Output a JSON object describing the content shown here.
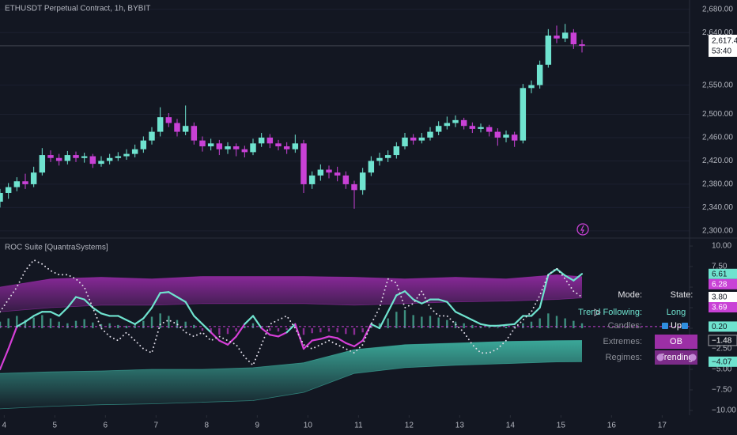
{
  "chart_data": [
    {
      "type": "candlestick",
      "title": "ETHUSDT Perpetual Contract, 1h, BYBIT",
      "x": [
        -2,
        2,
        6,
        10,
        14,
        18,
        22,
        26,
        30,
        34,
        38,
        42,
        46,
        50,
        54,
        58,
        62,
        66,
        70,
        74,
        78,
        82,
        86,
        90,
        94,
        98,
        102,
        106,
        110,
        114,
        118,
        122,
        126,
        130,
        134,
        138,
        142,
        146,
        150,
        154,
        158,
        162,
        166,
        170,
        174,
        178,
        182,
        186,
        190,
        194,
        198,
        202,
        206,
        210,
        214,
        218,
        222,
        226,
        230,
        234,
        238,
        242,
        246,
        250,
        254,
        258,
        262,
        266,
        270,
        274
      ],
      "ohlc": [
        [
          2350,
          2372,
          2340,
          2365
        ],
        [
          2365,
          2382,
          2355,
          2375
        ],
        [
          2375,
          2392,
          2368,
          2385
        ],
        [
          2385,
          2398,
          2372,
          2380
        ],
        [
          2380,
          2410,
          2375,
          2400
        ],
        [
          2400,
          2442,
          2395,
          2430
        ],
        [
          2430,
          2438,
          2418,
          2425
        ],
        [
          2425,
          2432,
          2412,
          2420
        ],
        [
          2420,
          2437,
          2414,
          2430
        ],
        [
          2430,
          2436,
          2418,
          2425
        ],
        [
          2425,
          2434,
          2417,
          2428
        ],
        [
          2428,
          2432,
          2408,
          2415
        ],
        [
          2415,
          2428,
          2410,
          2420
        ],
        [
          2420,
          2432,
          2414,
          2425
        ],
        [
          2425,
          2435,
          2420,
          2428
        ],
        [
          2428,
          2440,
          2422,
          2432
        ],
        [
          2432,
          2448,
          2426,
          2440
        ],
        [
          2440,
          2462,
          2434,
          2455
        ],
        [
          2455,
          2478,
          2448,
          2470
        ],
        [
          2470,
          2512,
          2462,
          2495
        ],
        [
          2495,
          2502,
          2478,
          2485
        ],
        [
          2485,
          2492,
          2462,
          2470
        ],
        [
          2470,
          2515,
          2464,
          2480
        ],
        [
          2480,
          2486,
          2448,
          2455
        ],
        [
          2455,
          2462,
          2436,
          2445
        ],
        [
          2445,
          2458,
          2438,
          2450
        ],
        [
          2450,
          2456,
          2430,
          2440
        ],
        [
          2440,
          2452,
          2432,
          2445
        ],
        [
          2445,
          2450,
          2428,
          2440
        ],
        [
          2440,
          2446,
          2426,
          2435
        ],
        [
          2435,
          2458,
          2430,
          2450
        ],
        [
          2450,
          2468,
          2444,
          2460
        ],
        [
          2460,
          2466,
          2442,
          2450
        ],
        [
          2450,
          2456,
          2438,
          2445
        ],
        [
          2445,
          2452,
          2432,
          2440
        ],
        [
          2440,
          2465,
          2434,
          2450
        ],
        [
          2450,
          2456,
          2365,
          2380
        ],
        [
          2380,
          2402,
          2372,
          2395
        ],
        [
          2395,
          2414,
          2386,
          2405
        ],
        [
          2405,
          2412,
          2390,
          2400
        ],
        [
          2400,
          2410,
          2385,
          2395
        ],
        [
          2395,
          2402,
          2372,
          2380
        ],
        [
          2380,
          2386,
          2338,
          2370
        ],
        [
          2370,
          2408,
          2362,
          2400
        ],
        [
          2400,
          2428,
          2394,
          2420
        ],
        [
          2420,
          2434,
          2412,
          2425
        ],
        [
          2425,
          2438,
          2418,
          2430
        ],
        [
          2430,
          2452,
          2424,
          2445
        ],
        [
          2445,
          2468,
          2440,
          2460
        ],
        [
          2460,
          2466,
          2448,
          2455
        ],
        [
          2455,
          2468,
          2450,
          2460
        ],
        [
          2460,
          2478,
          2455,
          2470
        ],
        [
          2470,
          2488,
          2464,
          2480
        ],
        [
          2480,
          2496,
          2474,
          2485
        ],
        [
          2485,
          2498,
          2478,
          2490
        ],
        [
          2490,
          2494,
          2474,
          2480
        ],
        [
          2480,
          2486,
          2468,
          2475
        ],
        [
          2475,
          2484,
          2469,
          2478
        ],
        [
          2478,
          2482,
          2462,
          2470
        ],
        [
          2470,
          2476,
          2446,
          2460
        ],
        [
          2460,
          2472,
          2452,
          2465
        ],
        [
          2465,
          2470,
          2444,
          2455
        ],
        [
          2455,
          2552,
          2450,
          2545
        ],
        [
          2545,
          2558,
          2536,
          2550
        ],
        [
          2550,
          2592,
          2544,
          2585
        ],
        [
          2585,
          2646,
          2580,
          2635
        ],
        [
          2635,
          2652,
          2622,
          2630
        ],
        [
          2630,
          2655,
          2624,
          2640
        ],
        [
          2640,
          2646,
          2612,
          2620
        ],
        [
          2620,
          2628,
          2606,
          2617.45
        ]
      ],
      "up_color": "#6fe3cf",
      "down_color": "#c941d6",
      "xlim": [
        -2,
        325
      ],
      "ylim": [
        2289,
        2696
      ],
      "yticks": [
        {
          "value": 2680,
          "label": "2,680.00"
        },
        {
          "value": 2640,
          "label": "2,640.00"
        },
        {
          "value": 2550,
          "label": "2,550.00"
        },
        {
          "value": 2500,
          "label": "2,500.00"
        },
        {
          "value": 2460,
          "label": "2,460.00"
        },
        {
          "value": 2420,
          "label": "2,420.00"
        },
        {
          "value": 2380,
          "label": "2,380.00"
        },
        {
          "value": 2340,
          "label": "2,340.00"
        },
        {
          "value": 2300,
          "label": "2,300.00"
        }
      ],
      "last_price": {
        "value": 2617.45,
        "label": "2,617.45"
      },
      "countdown": "53:40"
    },
    {
      "type": "line",
      "title": "ROC Suite [QuantraSystems]",
      "x": [
        -2,
        2,
        6,
        10,
        14,
        18,
        22,
        26,
        30,
        34,
        38,
        42,
        46,
        50,
        54,
        58,
        62,
        66,
        70,
        74,
        78,
        82,
        86,
        90,
        94,
        98,
        102,
        106,
        110,
        114,
        118,
        122,
        126,
        130,
        134,
        138,
        142,
        146,
        150,
        154,
        158,
        162,
        166,
        170,
        174,
        178,
        182,
        186,
        190,
        194,
        198,
        202,
        206,
        210,
        214,
        218,
        222,
        226,
        230,
        234,
        238,
        242,
        246,
        250,
        254,
        258,
        262,
        266,
        270,
        274
      ],
      "series": [
        {
          "values": [
            -5,
            -2.5,
            0.2,
            0.8,
            1.5,
            2,
            2,
            1.5,
            2.5,
            3.8,
            3.5,
            2.5,
            1.8,
            1.5,
            1.5,
            1,
            0.5,
            1.2,
            2.5,
            4.3,
            4.4,
            3.8,
            3.2,
            1.5,
            0.5,
            -0.5,
            -1.5,
            -2,
            -1,
            0.5,
            1.5,
            0,
            -0.8,
            -1,
            -0.5,
            0.5,
            -2.5,
            -1.5,
            -1.3,
            -1,
            -1.2,
            -1.8,
            -2.2,
            -1.5,
            0.5,
            0,
            2,
            4,
            4.5,
            3.5,
            3,
            3.5,
            3.5,
            3.2,
            2,
            1.5,
            1,
            0.5,
            0.3,
            0.3,
            0.4,
            0.5,
            1.5,
            1.5,
            2.5,
            6.5,
            7.2,
            6.4,
            5.8,
            6.61
          ],
          "color": "#6fe3cf",
          "neg_color": "#d63fd8"
        },
        {
          "values": [
            2,
            3.5,
            5,
            7,
            8.3,
            7.8,
            7,
            6.5,
            6.5,
            6,
            5,
            2.5,
            0,
            -1,
            -1.5,
            -0.5,
            -1.5,
            -2.5,
            -3,
            0.5,
            1,
            0.5,
            -0.5,
            -1,
            -0.5,
            -1.5,
            -1,
            -1.5,
            -2,
            -3.5,
            -4.5,
            -2,
            0.5,
            1,
            1.5,
            0,
            -2,
            -2.5,
            -2,
            -1.5,
            -2,
            -2.5,
            -3,
            -2,
            0.5,
            2.5,
            6,
            5.5,
            2.5,
            3,
            4.5,
            2.5,
            1.5,
            1.5,
            0.5,
            -0.5,
            -2,
            -3,
            -3,
            -2.5,
            -1.5,
            0,
            1,
            2,
            4,
            6.5,
            7.3,
            6,
            4.5,
            3.8
          ],
          "color": "#e0dde8",
          "style": "dotted"
        }
      ],
      "bands": [
        {
          "x": [
            -2,
            22,
            46,
            70,
            94,
            118,
            142,
            166,
            190,
            214,
            238,
            262,
            274
          ],
          "upper": [
            5,
            6,
            6.2,
            6,
            6.3,
            6.3,
            6.3,
            6.2,
            6,
            6.2,
            6,
            6.5,
            6.28
          ],
          "lower": [
            2,
            2.5,
            2.8,
            2.8,
            3,
            3,
            3,
            2.8,
            3,
            3.2,
            3.3,
            3.5,
            3.69
          ],
          "color": "#a02cb0"
        },
        {
          "x": [
            -2,
            22,
            46,
            70,
            94,
            118,
            142,
            166,
            190,
            214,
            238,
            262,
            274
          ],
          "upper": [
            -5.5,
            -5.3,
            -5.2,
            -5,
            -5,
            -4.8,
            -4.2,
            -2.6,
            -2,
            -1.8,
            -1.6,
            -1.5,
            -1.48
          ],
          "lower": [
            -9.8,
            -9.5,
            -9.3,
            -9.2,
            -9,
            -8.8,
            -7.8,
            -5.5,
            -4.8,
            -4.5,
            -4.3,
            -4.1,
            -4.07
          ],
          "color": "#3fb8a6"
        }
      ],
      "histogram": {
        "values": [
          0.8,
          1.2,
          1.5,
          1,
          1.3,
          1.6,
          1.2,
          0.8,
          0.6,
          0.9,
          1.1,
          0.7,
          0.5,
          0.6,
          0.4,
          0.3,
          0.5,
          0.9,
          1.4,
          1.8,
          1.5,
          1,
          0.8,
          0.4,
          -0.3,
          -0.6,
          -0.8,
          -0.7,
          -0.4,
          0.3,
          0.6,
          0.2,
          -0.3,
          -0.4,
          -0.2,
          0.3,
          -0.8,
          -0.6,
          -0.5,
          -0.4,
          -0.5,
          -0.7,
          -0.8,
          -0.5,
          0.4,
          0.6,
          1.2,
          2,
          2.2,
          1.6,
          1.4,
          1.5,
          1.3,
          1,
          0.8,
          0.6,
          0.4,
          0.2,
          0.1,
          0.1,
          0.2,
          0.3,
          0.6,
          0.8,
          1.2,
          1.8,
          1.5,
          1.2,
          0.9,
          0.6
        ],
        "color": "#3d8f7f",
        "neg_color": "#8a2d94"
      },
      "level": {
        "value": 0.2,
        "color": "#c941d6"
      },
      "last_labels": [
        {
          "value": 6.61,
          "color": "#6fe3cf",
          "text_color": "#131722"
        },
        {
          "value": 6.28,
          "color": "#c941d6",
          "text_color": "#ffffff"
        },
        {
          "value": 3.8,
          "label": "3.80",
          "color": "#ffffff",
          "text_color": "#131722"
        },
        {
          "value": 3.69,
          "color": "#c941d6",
          "text_color": "#ffffff"
        },
        {
          "value": 0.2,
          "label": "0.20",
          "color": "#6fe3cf",
          "text_color": "#131722"
        },
        {
          "value": -1.48,
          "label": "−1.48",
          "color": "#131722",
          "text_color": "#ffffff"
        },
        {
          "value": -4.07,
          "label": "−4.07",
          "color": "#6fe3cf",
          "text_color": "#131722"
        }
      ],
      "xlim": [
        -2,
        325
      ],
      "ylim": [
        -10.58,
        10.87
      ],
      "yticks": [
        {
          "value": 10,
          "label": "10.00"
        },
        {
          "value": 7.5,
          "label": "7.50"
        },
        {
          "value": 5,
          "label": "5.00"
        },
        {
          "value": 2.5,
          "label": "2.50"
        },
        {
          "value": 0,
          "label": "0.00"
        },
        {
          "value": -2.5,
          "label": "−2.50"
        },
        {
          "value": -5,
          "label": "−5.00"
        },
        {
          "value": -7.5,
          "label": "−7.50"
        },
        {
          "value": -10,
          "label": "−10.00"
        }
      ],
      "xticks": [
        {
          "value": 0,
          "label": "4"
        },
        {
          "value": 24,
          "label": "5"
        },
        {
          "value": 48,
          "label": "6"
        },
        {
          "value": 72,
          "label": "7"
        },
        {
          "value": 96,
          "label": "8"
        },
        {
          "value": 120,
          "label": "9"
        },
        {
          "value": 144,
          "label": "10"
        },
        {
          "value": 168,
          "label": "11"
        },
        {
          "value": 192,
          "label": "12"
        },
        {
          "value": 216,
          "label": "13"
        },
        {
          "value": 240,
          "label": "14"
        },
        {
          "value": 264,
          "label": "15"
        },
        {
          "value": 288,
          "label": "16"
        },
        {
          "value": 312,
          "label": "17"
        }
      ],
      "table": {
        "headers": [
          "Mode:",
          "State:"
        ],
        "rows": [
          [
            "Trend Following:",
            "Long"
          ],
          [
            "Candles:",
            "Up"
          ],
          [
            "Extremes:",
            "OB"
          ],
          [
            "Regimes:",
            "Trending"
          ]
        ]
      }
    }
  ]
}
